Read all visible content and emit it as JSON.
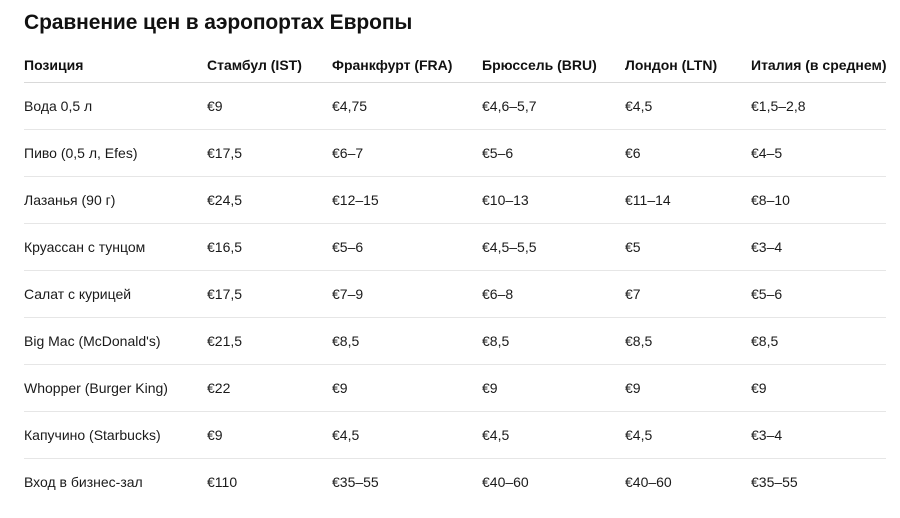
{
  "title": "Сравнение цен в аэропортах Европы",
  "table": {
    "headers": [
      "Позиция",
      "Стамбул (IST)",
      "Франкфурт (FRA)",
      "Брюссель (BRU)",
      "Лондон (LTN)",
      "Италия (в среднем)"
    ],
    "rows": [
      [
        "Вода 0,5 л",
        "€9",
        "€4,75",
        "€4,6–5,7",
        "€4,5",
        "€1,5–2,8"
      ],
      [
        "Пиво (0,5 л, Efes)",
        "€17,5",
        "€6–7",
        "€5–6",
        "€6",
        "€4–5"
      ],
      [
        "Лазанья (90 г)",
        "€24,5",
        "€12–15",
        "€10–13",
        "€11–14",
        "€8–10"
      ],
      [
        "Круассан с тунцом",
        "€16,5",
        "€5–6",
        "€4,5–5,5",
        "€5",
        "€3–4"
      ],
      [
        "Салат с курицей",
        "€17,5",
        "€7–9",
        "€6–8",
        "€7",
        "€5–6"
      ],
      [
        "Big Mac (McDonald's)",
        "€21,5",
        "€8,5",
        "€8,5",
        "€8,5",
        "€8,5"
      ],
      [
        "Whopper (Burger King)",
        "€22",
        "€9",
        "€9",
        "€9",
        "€9"
      ],
      [
        "Капучино (Starbucks)",
        "€9",
        "€4,5",
        "€4,5",
        "€4,5",
        "€3–4"
      ],
      [
        "Вход в бизнес-зал",
        "€110",
        "€35–55",
        "€40–60",
        "€40–60",
        "€35–55"
      ]
    ]
  }
}
